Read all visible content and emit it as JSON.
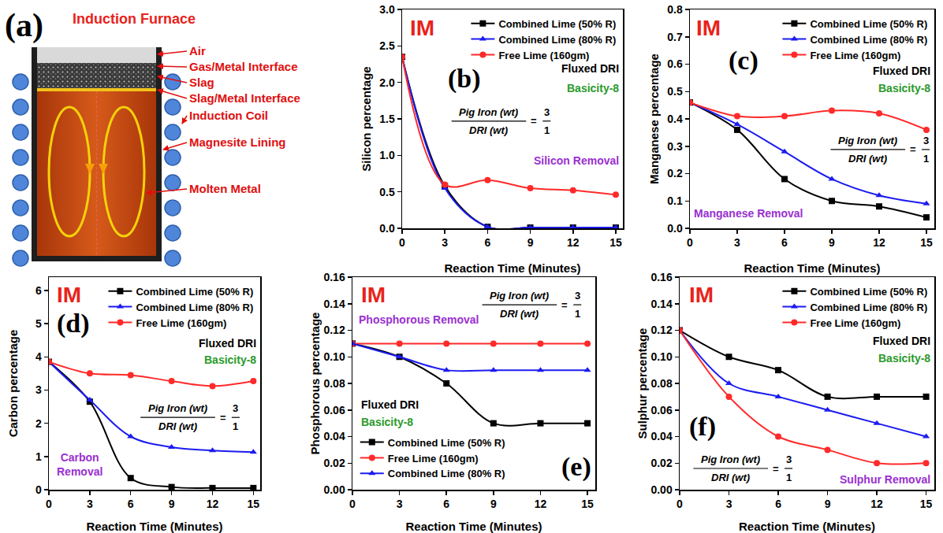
{
  "panel_a": {
    "label": "(a)",
    "title": "Induction Furnace",
    "callouts": [
      "Air",
      "Gas/Metal Interface",
      "Slag",
      "Slag/Metal Interface",
      "Induction Coil",
      "Magnesite Lining",
      "Molten Metal"
    ]
  },
  "chart_data": [
    {
      "type": "line",
      "panel": "(b)",
      "tag": "IM",
      "x_label": "Reaction Time (Minutes)",
      "y_label": "Silicon percentage",
      "x": [
        0,
        3,
        6,
        9,
        12,
        15
      ],
      "xlim": [
        0,
        15.5
      ],
      "xticks": [
        0,
        3,
        6,
        9,
        12,
        15
      ],
      "ylim": [
        0,
        3
      ],
      "yticks": [
        {
          "value": 0,
          "label": "0.0"
        },
        0.5,
        {
          "value": 1,
          "label": "1.0"
        },
        1.5,
        {
          "value": 2,
          "label": "2.0"
        },
        2.5,
        {
          "value": 3,
          "label": "3.0"
        }
      ],
      "grid": false,
      "legend": "upper right",
      "line_style": "spline",
      "series": [
        {
          "name": "Combined Lime (50% R)",
          "color": "#000000",
          "marker": "square",
          "values": [
            2.35,
            0.58,
            0.02,
            0.01,
            0.01,
            0.01
          ]
        },
        {
          "name": "Combined Lime (80% R)",
          "color": "#1c1cf0",
          "marker": "triangle-up",
          "values": [
            2.35,
            0.55,
            0.02,
            0.01,
            0.01,
            0.01
          ]
        },
        {
          "name": "Free Lime (160gm)",
          "color": "#ff2a2a",
          "marker": "circle",
          "values": [
            2.35,
            0.6,
            0.66,
            0.55,
            0.52,
            0.46
          ]
        }
      ],
      "note": "Fluxed DRI",
      "basicity": "Basicity-8",
      "removal": "Silicon Removal",
      "ratio": {
        "numerator_text": "Pig Iron (wt)",
        "denominator_text": "DRI (wt)",
        "relation": "=",
        "numerator": 3,
        "denominator": 1
      }
    },
    {
      "type": "line",
      "panel": "(c)",
      "tag": "IM",
      "x_label": "Reaction Time (Minutes)",
      "y_label": "Manganese percentage",
      "x": [
        0,
        3,
        6,
        9,
        12,
        15
      ],
      "xlim": [
        0,
        15.5
      ],
      "xticks": [
        0,
        3,
        6,
        9,
        12,
        15
      ],
      "ylim": [
        0,
        0.8
      ],
      "yticks": [
        {
          "value": 0,
          "label": "0.0"
        },
        0.1,
        0.2,
        0.3,
        0.4,
        0.5,
        0.6,
        0.7,
        0.8
      ],
      "grid": false,
      "legend": "upper right",
      "line_style": "spline",
      "series": [
        {
          "name": "Combined Lime (50% R)",
          "color": "#000000",
          "marker": "square",
          "values": [
            0.46,
            0.36,
            0.18,
            0.1,
            0.08,
            0.04
          ]
        },
        {
          "name": "Combined Lime (80% R)",
          "color": "#1c1cf0",
          "marker": "triangle-up",
          "values": [
            0.46,
            0.38,
            0.28,
            0.18,
            0.12,
            0.09
          ]
        },
        {
          "name": "Free Lime (160gm)",
          "color": "#ff2a2a",
          "marker": "circle",
          "values": [
            0.46,
            0.41,
            0.41,
            0.43,
            0.42,
            0.36
          ]
        }
      ],
      "note": "Fluxed DRI",
      "basicity": "Basicity-8",
      "removal": "Manganese Removal",
      "ratio": {
        "numerator_text": "Pig Iron (wt)",
        "denominator_text": "DRI (wt)",
        "relation": "=",
        "numerator": 3,
        "denominator": 1
      }
    },
    {
      "type": "line",
      "panel": "(d)",
      "tag": "IM",
      "x_label": "Reaction Time (Minutes)",
      "y_label": "Carbon percentage",
      "x": [
        0,
        3,
        6,
        9,
        12,
        15
      ],
      "xlim": [
        0,
        15.5
      ],
      "xticks": [
        0,
        3,
        6,
        9,
        12,
        15
      ],
      "ylim": [
        0,
        6.4
      ],
      "yticks": [
        0,
        1,
        2,
        3,
        4,
        5,
        6
      ],
      "grid": false,
      "legend": "upper right",
      "line_style": "spline",
      "series": [
        {
          "name": "Combined Lime (50% R)",
          "color": "#000000",
          "marker": "square",
          "values": [
            3.85,
            2.65,
            0.35,
            0.08,
            0.05,
            0.05
          ]
        },
        {
          "name": "Combined Lime (80% R)",
          "color": "#1c1cf0",
          "marker": "triangle-up",
          "values": [
            3.85,
            2.7,
            1.6,
            1.28,
            1.18,
            1.13
          ]
        },
        {
          "name": "Free Lime (160gm)",
          "color": "#ff2a2a",
          "marker": "circle",
          "values": [
            3.85,
            3.5,
            3.45,
            3.27,
            3.12,
            3.27
          ]
        }
      ],
      "note": "Fluxed DRI",
      "basicity": "Basicity-8",
      "removal": "Carbon Removal",
      "ratio": {
        "numerator_text": "Pig Iron (wt)",
        "denominator_text": "DRI (wt)",
        "relation": "=",
        "numerator": 3,
        "denominator": 1
      }
    },
    {
      "type": "line",
      "panel": "(e)",
      "tag": "IM",
      "x_label": "Reaction Time (Minutes)",
      "y_label": "Phosphorous percentage",
      "x": [
        0,
        3,
        6,
        9,
        12,
        15
      ],
      "xlim": [
        0,
        15.5
      ],
      "xticks": [
        0,
        3,
        6,
        9,
        12,
        15
      ],
      "ylim": [
        0,
        0.16
      ],
      "yticks": [
        {
          "value": 0,
          "label": "0.00"
        },
        {
          "value": 0.02,
          "label": "0.02"
        },
        {
          "value": 0.04,
          "label": "0.04"
        },
        {
          "value": 0.06,
          "label": "0.06"
        },
        {
          "value": 0.08,
          "label": "0.08"
        },
        {
          "value": 0.1,
          "label": "0.10"
        },
        {
          "value": 0.12,
          "label": "0.12"
        },
        {
          "value": 0.14,
          "label": "0.14"
        },
        {
          "value": 0.16,
          "label": "0.16"
        }
      ],
      "grid": false,
      "legend": "lower left",
      "line_style": "spline",
      "series": [
        {
          "name": "Combined Lime (50% R)",
          "color": "#000000",
          "marker": "square",
          "values": [
            0.11,
            0.1,
            0.08,
            0.05,
            0.05,
            0.05
          ]
        },
        {
          "name": "Free Lime (160gm)",
          "color": "#ff2a2a",
          "marker": "circle",
          "values": [
            0.11,
            0.11,
            0.11,
            0.11,
            0.11,
            0.11
          ]
        },
        {
          "name": "Combined Lime (80% R)",
          "color": "#1c1cf0",
          "marker": "triangle-up",
          "values": [
            0.11,
            0.1,
            0.09,
            0.09,
            0.09,
            0.09
          ]
        }
      ],
      "note": "Fluxed DRI",
      "basicity": "Basicity-8",
      "removal": "Phosphorous Removal",
      "ratio": {
        "numerator_text": "Pig Iron (wt)",
        "denominator_text": "DRI (wt)",
        "relation": "=",
        "numerator": 3,
        "denominator": 1
      }
    },
    {
      "type": "line",
      "panel": "(f)",
      "tag": "IM",
      "x_label": "Reaction Time (Minutes)",
      "y_label": "Sulphur percentage",
      "x": [
        0,
        3,
        6,
        9,
        12,
        15
      ],
      "xlim": [
        0,
        15.5
      ],
      "xticks": [
        0,
        3,
        6,
        9,
        12,
        15
      ],
      "ylim": [
        0,
        0.16
      ],
      "yticks": [
        {
          "value": 0,
          "label": "0.00"
        },
        {
          "value": 0.02,
          "label": "0.02"
        },
        {
          "value": 0.04,
          "label": "0.04"
        },
        {
          "value": 0.06,
          "label": "0.06"
        },
        {
          "value": 0.08,
          "label": "0.08"
        },
        {
          "value": 0.1,
          "label": "0.10"
        },
        {
          "value": 0.12,
          "label": "0.12"
        },
        {
          "value": 0.14,
          "label": "0.14"
        },
        {
          "value": 0.16,
          "label": "0.16"
        }
      ],
      "grid": false,
      "legend": "upper right",
      "line_style": "spline",
      "series": [
        {
          "name": "Combined Lime (50% R)",
          "color": "#000000",
          "marker": "square",
          "values": [
            0.12,
            0.1,
            0.09,
            0.07,
            0.07,
            0.07
          ]
        },
        {
          "name": "Combined Lime (80% R)",
          "color": "#1c1cf0",
          "marker": "triangle-up",
          "values": [
            0.12,
            0.08,
            0.07,
            0.06,
            0.05,
            0.04
          ]
        },
        {
          "name": "Free Lime (160gm)",
          "color": "#ff2a2a",
          "marker": "circle",
          "values": [
            0.12,
            0.07,
            0.04,
            0.03,
            0.02,
            0.02
          ]
        }
      ],
      "note": "Fluxed DRI",
      "basicity": "Basicity-8",
      "removal": "Sulphur Removal",
      "ratio": {
        "numerator_text": "Pig Iron (wt)",
        "denominator_text": "DRI (wt)",
        "relation": "=",
        "numerator": 3,
        "denominator": 1
      }
    }
  ]
}
